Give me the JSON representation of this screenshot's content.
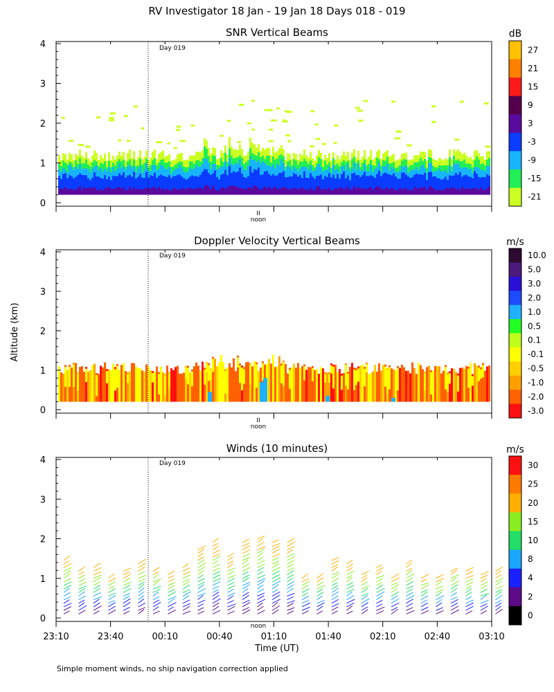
{
  "figure": {
    "title": "RV Investigator  18 Jan - 19 Jan 18 Days 018 - 019",
    "ylabel": "Altitude (km)",
    "xlabel": "Time (UT)",
    "footnote": "Simple moment winds, no ship navigation correction applied",
    "day_marker_label": "Day 019",
    "noon_label": "noon",
    "noon_tick": "II"
  },
  "chart_data": [
    {
      "type": "heatmap",
      "title": "SNR Vertical Beams",
      "ylabel": "Altitude (km)",
      "y_ticks": [
        0,
        1,
        2,
        3,
        4
      ],
      "ylim": [
        0,
        4
      ],
      "colorbar": {
        "unit": "dB",
        "labels": [
          "27",
          "21",
          "15",
          "9",
          "3",
          "-3",
          "-9",
          "-15",
          "-21"
        ],
        "colors": [
          "#ffc000",
          "#ff7f00",
          "#ff1a1a",
          "#55004d",
          "#5a0a9f",
          "#0a3cff",
          "#17b4ff",
          "#22ee55",
          "#ccff22"
        ]
      }
    },
    {
      "type": "heatmap",
      "title": "Doppler Velocity Vertical Beams",
      "ylabel": "Altitude (km)",
      "y_ticks": [
        0,
        1,
        2,
        3,
        4
      ],
      "ylim": [
        0,
        4
      ],
      "colorbar": {
        "unit": "m/s",
        "labels": [
          "10.0",
          "5.0",
          "3.0",
          "2.0",
          "1.0",
          "0.5",
          "0.1",
          "-0.1",
          "-0.5",
          "-1.0",
          "-2.0",
          "-3.0"
        ],
        "colors": [
          "#2d0a30",
          "#4c1a7d",
          "#2a10d6",
          "#1b4dff",
          "#1fb0ff",
          "#22ff22",
          "#bfff1a",
          "#ffff00",
          "#ffd000",
          "#ffa000",
          "#ff6000",
          "#ff1010"
        ]
      }
    },
    {
      "type": "scatter",
      "title": "Winds (10 minutes)",
      "ylabel": "Altitude (km)",
      "xlabel": "Time (UT)",
      "x_ticks": [
        "23:10",
        "23:40",
        "00:10",
        "00:40",
        "01:10",
        "01:40",
        "02:10",
        "02:40",
        "03:10"
      ],
      "y_ticks": [
        0,
        1,
        2,
        3,
        4
      ],
      "ylim": [
        0,
        4
      ],
      "colorbar": {
        "unit": "m/s",
        "labels": [
          "30",
          "25",
          "20",
          "15",
          "10",
          "8",
          "4",
          "2",
          "0"
        ],
        "colors": [
          "#ff1010",
          "#ff7a00",
          "#ffb000",
          "#88ee22",
          "#22dd66",
          "#1aa6ff",
          "#1a20ff",
          "#5c0a88",
          "#000000"
        ]
      }
    }
  ]
}
